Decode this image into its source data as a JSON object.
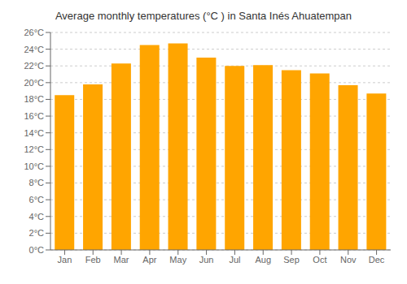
{
  "chart_data": {
    "type": "bar",
    "title": "Average monthly temperatures (°C ) in Santa Inés Ahuatempan",
    "categories": [
      "Jan",
      "Feb",
      "Mar",
      "Apr",
      "May",
      "Jun",
      "Jul",
      "Aug",
      "Sep",
      "Oct",
      "Nov",
      "Dec"
    ],
    "values": [
      18.5,
      19.8,
      22.3,
      24.5,
      24.7,
      23.0,
      22.0,
      22.1,
      21.5,
      21.1,
      19.7,
      18.7
    ],
    "color": "#FFA500",
    "ylim": [
      0,
      26
    ],
    "yticks": [
      {
        "value": 0,
        "label": "0°C"
      },
      {
        "value": 2,
        "label": "2°C"
      },
      {
        "value": 4,
        "label": "4°C"
      },
      {
        "value": 6,
        "label": "6°C"
      },
      {
        "value": 8,
        "label": "8°C"
      },
      {
        "value": 10,
        "label": "10°C"
      },
      {
        "value": 12,
        "label": "12°C"
      },
      {
        "value": 14,
        "label": "14°C"
      },
      {
        "value": 16,
        "label": "16°C"
      },
      {
        "value": 18,
        "label": "18°C"
      },
      {
        "value": 20,
        "label": "20°C"
      },
      {
        "value": 22,
        "label": "22°C"
      },
      {
        "value": 24,
        "label": "24°C"
      },
      {
        "value": 26,
        "label": "26°C"
      }
    ],
    "grid": true
  }
}
